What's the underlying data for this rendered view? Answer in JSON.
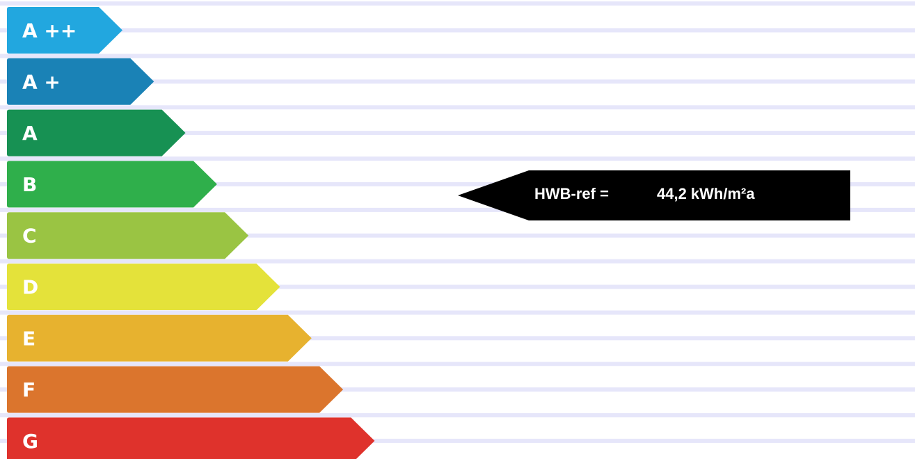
{
  "chart_data": {
    "type": "bar",
    "categories": [
      "A ++",
      "A +",
      "A",
      "B",
      "C",
      "D",
      "E",
      "F",
      "G"
    ],
    "colors": [
      "#22a7df",
      "#1a82b6",
      "#179153",
      "#2faf4b",
      "#9ac443",
      "#e4e23a",
      "#e7b22f",
      "#db752d",
      "#df322c"
    ],
    "line_color": "#e6e6fa",
    "indicator": {
      "label": "HWB-ref =",
      "value": "44,2 kWh/m²a",
      "color": "#000000",
      "text_color": "#ffffff"
    }
  }
}
